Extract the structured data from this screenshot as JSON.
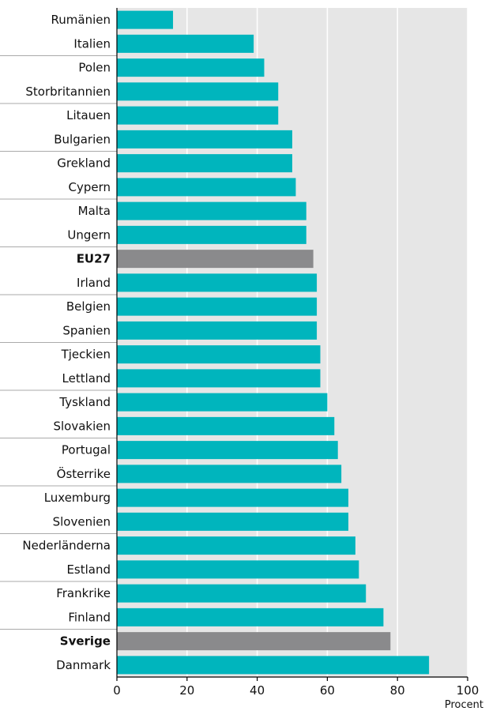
{
  "chart_data": {
    "type": "bar",
    "orientation": "horizontal",
    "categories": [
      "Rumänien",
      "Italien",
      "Polen",
      "Storbritannien",
      "Litauen",
      "Bulgarien",
      "Grekland",
      "Cypern",
      "Malta",
      "Ungern",
      "EU27",
      "Irland",
      "Belgien",
      "Spanien",
      "Tjeckien",
      "Lettland",
      "Tyskland",
      "Slovakien",
      "Portugal",
      "Österrike",
      "Luxemburg",
      "Slovenien",
      "Nederländerna",
      "Estland",
      "Frankrike",
      "Finland",
      "Sverige",
      "Danmark"
    ],
    "values": [
      16,
      39,
      42,
      46,
      46,
      50,
      50,
      51,
      54,
      54,
      56,
      57,
      57,
      57,
      58,
      58,
      60,
      62,
      63,
      64,
      66,
      66,
      68,
      69,
      71,
      76,
      78,
      89
    ],
    "highlighted": [
      "EU27",
      "Sverige"
    ],
    "xlim": [
      0,
      100
    ],
    "xticks": [
      0,
      20,
      40,
      60,
      80,
      100
    ],
    "xlabel": "Procent",
    "title": "",
    "ylabel": "",
    "grid": true,
    "colors": {
      "bar": "#00b5bd",
      "highlight_bar": "#8a8a8c",
      "plot_background": "#e6e6e6",
      "gridline": "#ffffff",
      "row_separator": "#aaaaaa"
    }
  }
}
